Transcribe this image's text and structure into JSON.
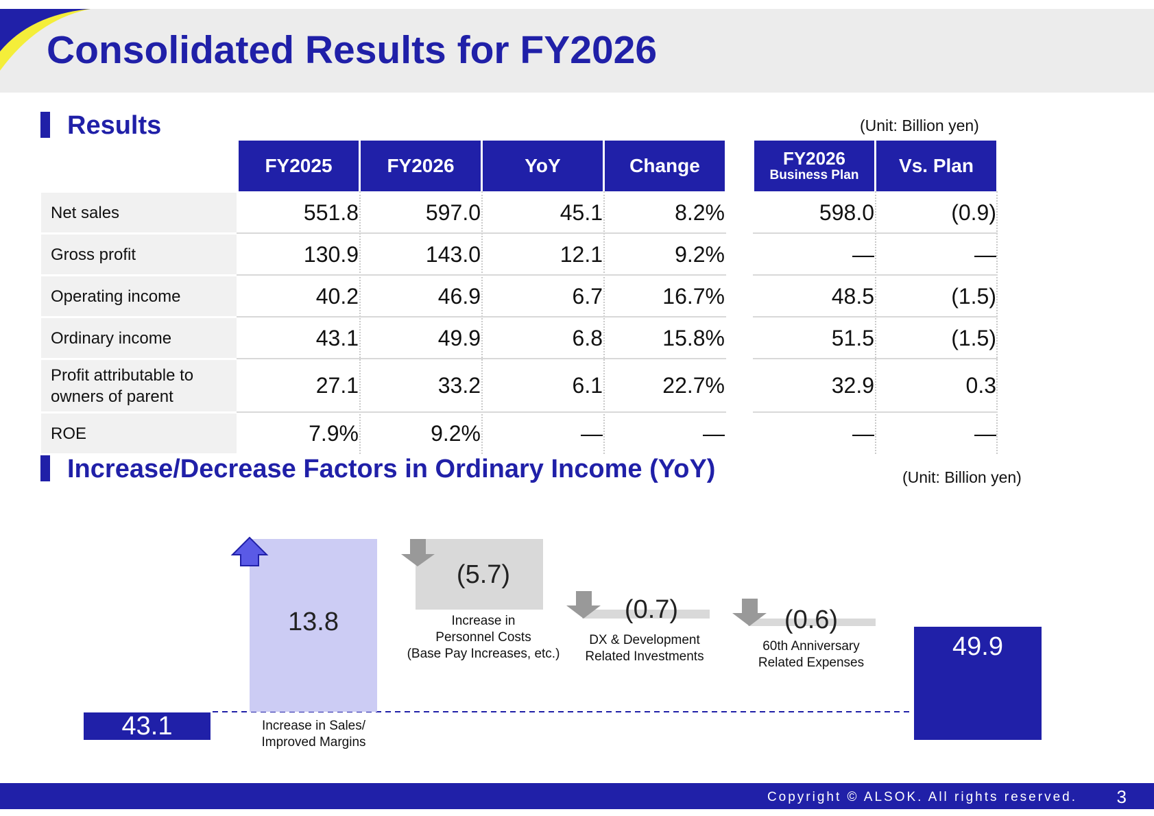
{
  "title": "Consolidated Results for FY2026",
  "results": {
    "section_title": "Results",
    "unit": "(Unit: Billion yen)",
    "columns": [
      "FY2025",
      "FY2026",
      "YoY",
      "Change"
    ],
    "plan_column_line1": "FY2026",
    "plan_column_line2": "Business Plan",
    "vs_plan_column": "Vs. Plan",
    "rows": [
      {
        "label": "Net sales",
        "fy2025": "551.8",
        "fy2026": "597.0",
        "yoy": "45.1",
        "change": "8.2%",
        "plan": "598.0",
        "vs_plan": "(0.9)"
      },
      {
        "label": "Gross profit",
        "fy2025": "130.9",
        "fy2026": "143.0",
        "yoy": "12.1",
        "change": "9.2%",
        "plan": "—",
        "vs_plan": "—"
      },
      {
        "label": "Operating income",
        "fy2025": "40.2",
        "fy2026": "46.9",
        "yoy": "6.7",
        "change": "16.7%",
        "plan": "48.5",
        "vs_plan": "(1.5)"
      },
      {
        "label": "Ordinary income",
        "fy2025": "43.1",
        "fy2026": "49.9",
        "yoy": "6.8",
        "change": "15.8%",
        "plan": "51.5",
        "vs_plan": "(1.5)"
      },
      {
        "label_line1": "Profit attributable to",
        "label_line2": "owners of parent",
        "fy2025": "27.1",
        "fy2026": "33.2",
        "yoy": "6.1",
        "change": "22.7%",
        "plan": "32.9",
        "vs_plan": "0.3"
      },
      {
        "label": "ROE",
        "fy2025": "7.9%",
        "fy2026": "9.2%",
        "yoy": "—",
        "change": "—",
        "plan": "—",
        "vs_plan": "—"
      }
    ]
  },
  "factors": {
    "section_title": "Increase/Decrease Factors in Ordinary Income (YoY)",
    "unit": "(Unit: Billion yen)",
    "start_value": "43.1",
    "end_value": "49.9",
    "items": [
      {
        "value": "13.8",
        "label_line1": "Increase in Sales/",
        "label_line2": "Improved Margins",
        "direction": "up"
      },
      {
        "value": "(5.7)",
        "label_line1": "Increase in",
        "label_line2": "Personnel Costs",
        "label_line3": "(Base Pay Increases, etc.)",
        "direction": "down"
      },
      {
        "value": "(0.7)",
        "label_line1": "DX & Development",
        "label_line2": "Related Investments",
        "direction": "down"
      },
      {
        "value": "(0.6)",
        "label_line1": "60th Anniversary",
        "label_line2": "Related Expenses",
        "direction": "down"
      }
    ],
    "colors": {
      "increase": "#ccccf4",
      "decrease": "#d9d9d9",
      "total": "#2020a8",
      "up_arrow": "#5a5ae6",
      "down_arrow": "#999999"
    }
  },
  "footer": {
    "copyright": "Copyright © ALSOK. All rights reserved.",
    "page_number": "3"
  }
}
